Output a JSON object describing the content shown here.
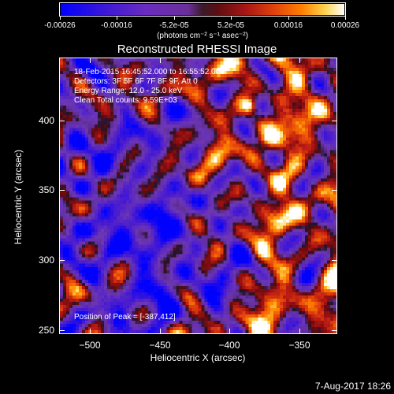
{
  "colorbar": {
    "ticks": [
      "-0.00026",
      "-0.00016",
      "-5.2e-05",
      "5.2e-05",
      "0.00016",
      "0.00026"
    ],
    "units": "(photons cm⁻² s⁻¹ asec⁻²)"
  },
  "chart_data": {
    "type": "heatmap",
    "title": "Reconstructed RHESSI Image",
    "xlabel": "Heliocentric X (arcsec)",
    "ylabel": "Heliocentric Y (arcsec)",
    "xlim": [
      -522,
      -323
    ],
    "ylim": [
      247,
      445
    ],
    "x_ticks": [
      -500,
      -450,
      -400,
      -350
    ],
    "y_ticks": [
      250,
      300,
      350,
      400
    ],
    "x_tick_labels": [
      "−500",
      "−450",
      "−400",
      "−350"
    ],
    "y_tick_labels": [
      "250",
      "300",
      "350",
      "400"
    ],
    "value_range": [
      -0.00026,
      0.00026
    ],
    "peak": [
      -387,
      412
    ]
  },
  "overlay": {
    "line1": "18-Feb-2015 16:45:52.000 to 16:55:52.000",
    "line2": "Detectors: 3F 5F 6F 7F 8F 9F, Att 0",
    "line3": "Energy Range: 12.0 - 25.0 keV",
    "line4": "Clean     Total counts: 9.59E+03",
    "peak_text": "Position of Peak = [-387,412]"
  },
  "footer": {
    "date": "7-Aug-2017 18:26"
  }
}
